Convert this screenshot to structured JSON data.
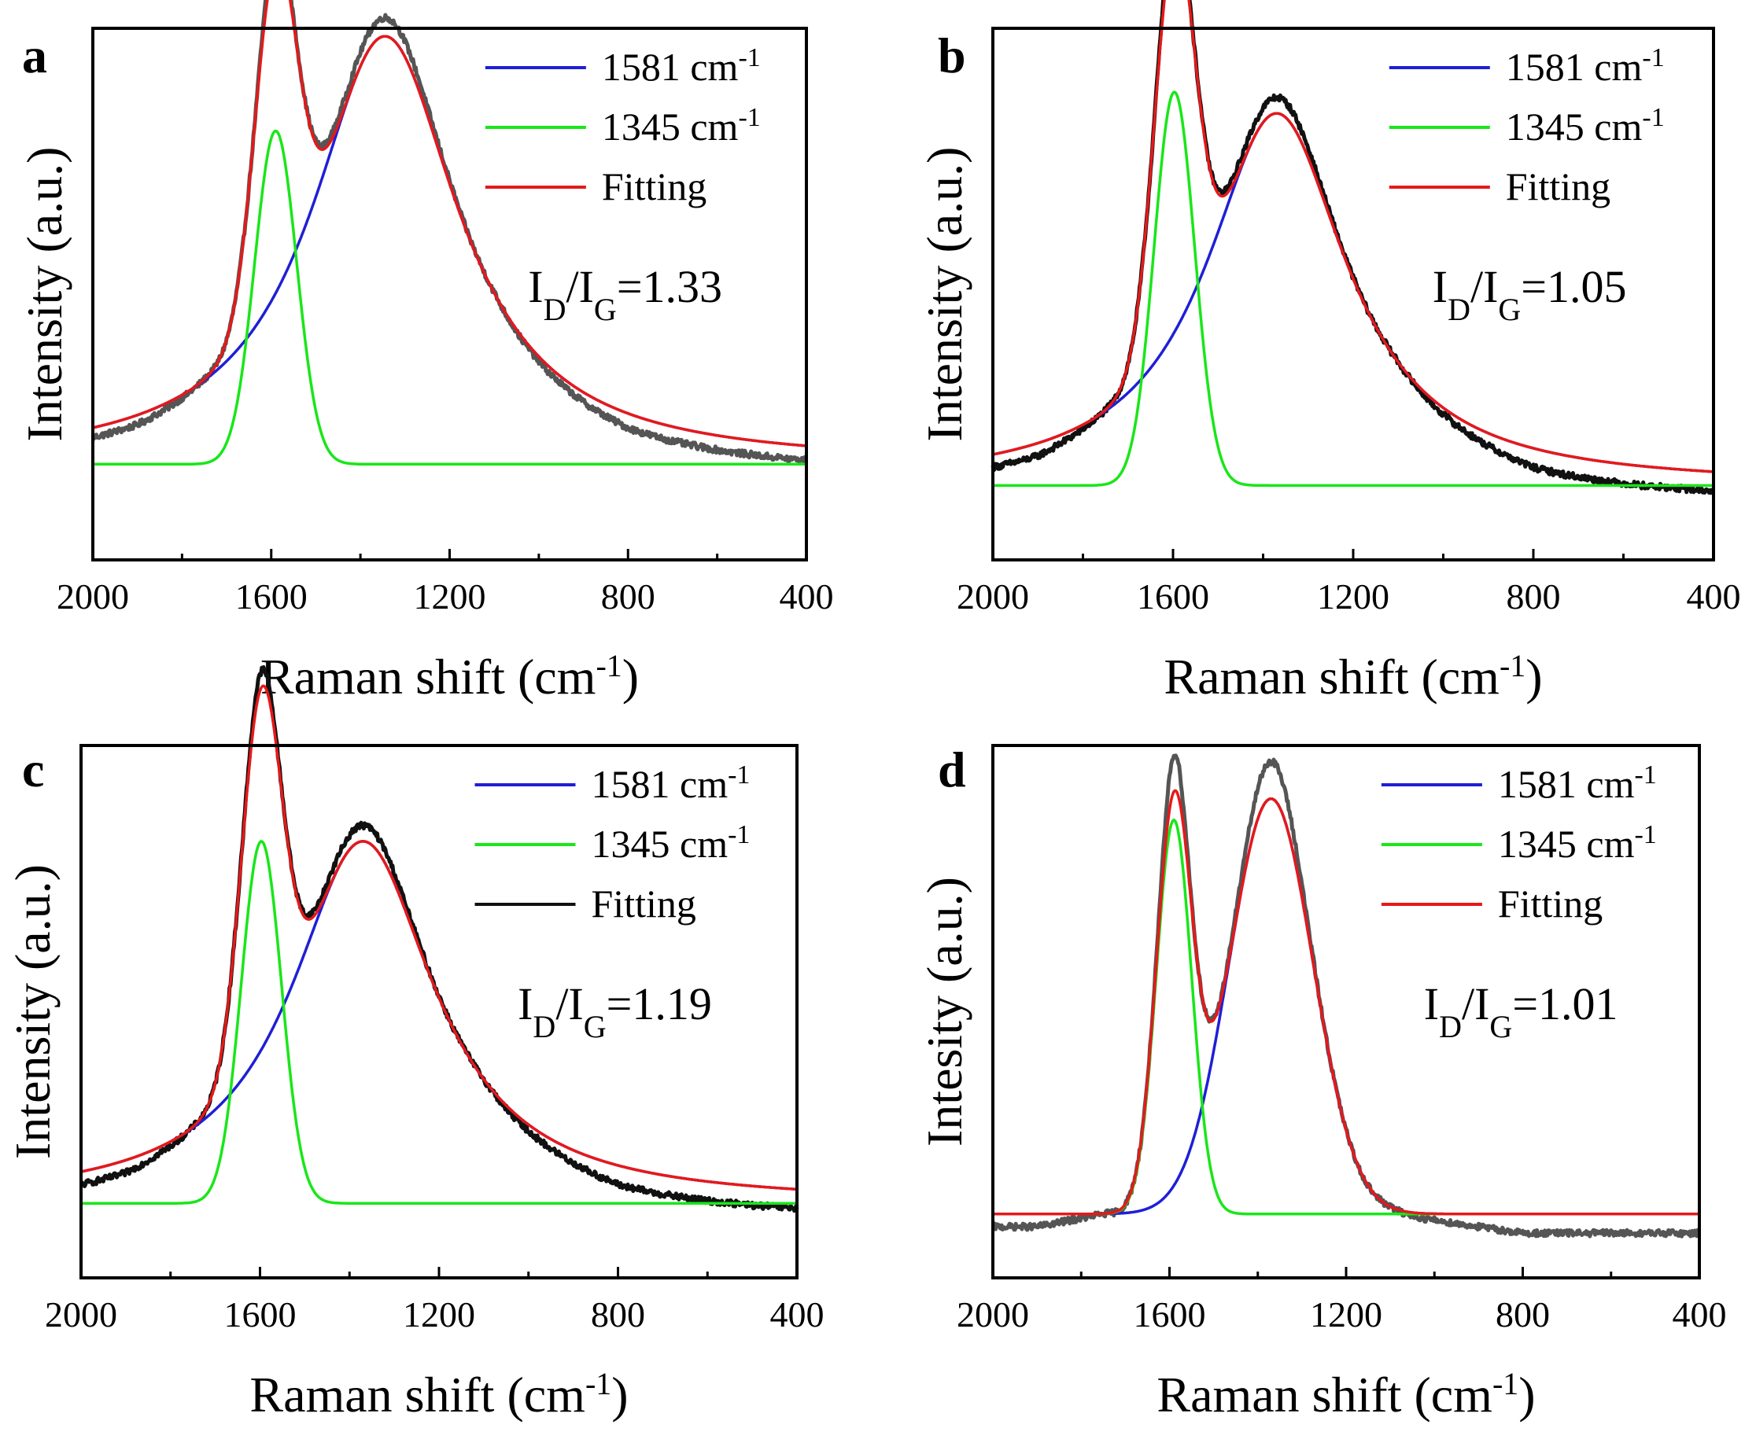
{
  "chart_data": [
    {
      "type": "line",
      "panel": "a",
      "xlabel": "Raman shift (cm-1)",
      "xlabel_main": "Raman shift (cm",
      "xlabel_sup": "-1",
      "xlabel_end": ")",
      "ylabel": "Intensity (a.u.)",
      "xlim": [
        2000,
        400
      ],
      "x_reversed": true,
      "x_ticks": [
        2000,
        1600,
        1200,
        800,
        400
      ],
      "ratio_label": {
        "main": "I",
        "sub1": "D",
        "slash": "/I",
        "sub2": "G",
        "value": "=1.33"
      },
      "legend": [
        {
          "label": "1581 cm",
          "sup": "-1",
          "color": "#1f1fd6"
        },
        {
          "label": "1345 cm",
          "sup": "-1",
          "color": "#19e619"
        },
        {
          "label": "Fitting",
          "sup": "",
          "color": "#e61919"
        }
      ],
      "raw_color": "#555555",
      "series": [
        {
          "name": "1581 cm-1",
          "color": "#1f1fd6",
          "kind": "lorentz",
          "center": 1345,
          "hwhm": 200,
          "amplitude": 0.805
        },
        {
          "name": "1345 cm-1",
          "color": "#19e619",
          "kind": "gauss",
          "center": 1590,
          "sigma": 47,
          "amplitude": 0.627
        },
        {
          "name": "Fitting",
          "color": "#e61919",
          "kind": "sum"
        },
        {
          "name": "raw",
          "color": "#555555",
          "kind": "raw",
          "peak_boost": 0.035,
          "noise": 0.006
        }
      ],
      "baseline": 0.18,
      "raw_tail": -0.03
    },
    {
      "type": "line",
      "panel": "b",
      "xlabel": "Raman shift (cm-1)",
      "xlabel_main": "Raman shift (cm",
      "xlabel_sup": "-1",
      "xlabel_end": ")",
      "ylabel": "Intensity (a.u.)",
      "xlim": [
        2000,
        400
      ],
      "x_reversed": true,
      "x_ticks": [
        2000,
        1600,
        1200,
        800,
        400
      ],
      "ratio_label": {
        "main": "I",
        "sub1": "D",
        "slash": "/I",
        "sub2": "G",
        "value": "=1.05"
      },
      "legend": [
        {
          "label": "1581 cm",
          "sup": "-1",
          "color": "#1f1fd6"
        },
        {
          "label": "1345 cm",
          "sup": "-1",
          "color": "#19e619"
        },
        {
          "label": "Fitting",
          "sup": "",
          "color": "#e61919"
        }
      ],
      "raw_color": "#111111",
      "series": [
        {
          "name": "1581 cm-1",
          "color": "#1f1fd6",
          "kind": "lorentz",
          "center": 1370,
          "hwhm": 190,
          "amplitude": 0.7
        },
        {
          "name": "1345 cm-1",
          "color": "#19e619",
          "kind": "gauss",
          "center": 1597,
          "sigma": 45,
          "amplitude": 0.74
        },
        {
          "name": "Fitting",
          "color": "#e61919",
          "kind": "sum"
        },
        {
          "name": "raw",
          "color": "#111111",
          "kind": "raw",
          "peak_boost": 0.03,
          "noise": 0.006
        }
      ],
      "baseline": 0.14,
      "raw_tail": -0.04
    },
    {
      "type": "line",
      "panel": "c",
      "xlabel": "Raman shift (cm-1)",
      "xlabel_main": "Raman shift (cm",
      "xlabel_sup": "-1",
      "xlabel_end": ")",
      "ylabel": "Intensity (a.u.)",
      "xlim": [
        2000,
        400
      ],
      "x_reversed": true,
      "x_ticks": [
        2000,
        1600,
        1200,
        800,
        400
      ],
      "ratio_label": {
        "main": "I",
        "sub1": "D",
        "slash": "/I",
        "sub2": "G",
        "value": "=1.19"
      },
      "legend": [
        {
          "label": "1581 cm",
          "sup": "-1",
          "color": "#1f1fd6"
        },
        {
          "label": "1345 cm",
          "sup": "-1",
          "color": "#19e619"
        },
        {
          "label": "Fitting",
          "sup": "",
          "color": "#111111"
        }
      ],
      "raw_color": "#111111",
      "series": [
        {
          "name": "1581 cm-1",
          "color": "#1f1fd6",
          "kind": "lorentz",
          "center": 1370,
          "hwhm": 195,
          "amplitude": 0.68
        },
        {
          "name": "1345 cm-1",
          "color": "#19e619",
          "kind": "gauss",
          "center": 1597,
          "sigma": 45,
          "amplitude": 0.68
        },
        {
          "name": "Fitting",
          "color": "#e61919",
          "kind": "sum"
        },
        {
          "name": "raw",
          "color": "#111111",
          "kind": "raw",
          "peak_boost": 0.03,
          "noise": 0.006
        }
      ],
      "baseline": 0.14,
      "raw_tail": -0.04
    },
    {
      "type": "line",
      "panel": "d",
      "xlabel": "Raman shift (cm-1)",
      "xlabel_main": "Raman shift (cm",
      "xlabel_sup": "-1",
      "xlabel_end": ")",
      "ylabel": "Intesity (a.u.)",
      "xlim": [
        2000,
        400
      ],
      "x_reversed": true,
      "x_ticks": [
        2000,
        1600,
        1200,
        800,
        400
      ],
      "ratio_label": {
        "main": "I",
        "sub1": "D",
        "slash": "/I",
        "sub2": "G",
        "value": "=1.01"
      },
      "legend": [
        {
          "label": "1581 cm",
          "sup": "-1",
          "color": "#1f1fd6"
        },
        {
          "label": "1345 cm",
          "sup": "-1",
          "color": "#19e619"
        },
        {
          "label": "Fitting",
          "sup": "",
          "color": "#e61919"
        }
      ],
      "raw_color": "#555555",
      "series": [
        {
          "name": "1581 cm-1",
          "color": "#1f1fd6",
          "kind": "gauss",
          "center": 1370,
          "sigma": 95,
          "amplitude": 0.78
        },
        {
          "name": "1345 cm-1",
          "color": "#19e619",
          "kind": "gauss",
          "center": 1590,
          "sigma": 40,
          "amplitude": 0.74
        },
        {
          "name": "Fitting",
          "color": "#e61919",
          "kind": "sum"
        },
        {
          "name": "raw",
          "color": "#555555",
          "kind": "raw",
          "peak_boost": 0.07,
          "noise": 0.006
        }
      ],
      "baseline": 0.12,
      "raw_tail": -0.04
    }
  ]
}
